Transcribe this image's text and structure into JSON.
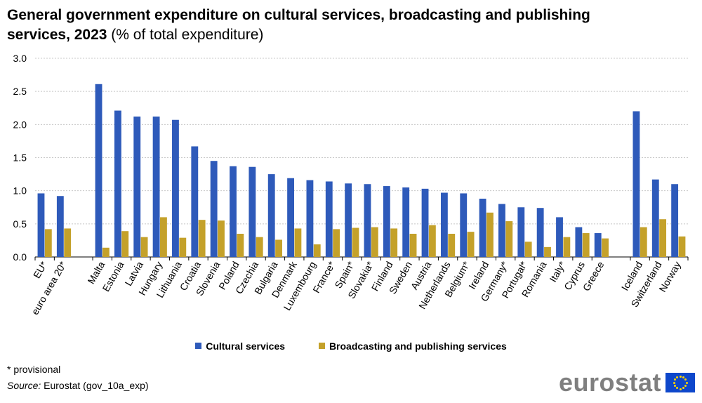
{
  "title_bold": "General government expenditure on cultural services, broadcasting and publishing services, 2023",
  "title_unit": " (% of total expenditure)",
  "note": "* provisional",
  "source_label": "Source:",
  "source_text": " Eurostat (gov_10a_exp)",
  "logo": "eurostat",
  "chart_data": {
    "type": "bar",
    "ylim": [
      0,
      3.0
    ],
    "yticks": [
      "0.0",
      "0.5",
      "1.0",
      "1.5",
      "2.0",
      "2.5",
      "3.0"
    ],
    "grid": true,
    "legend_placement": "bottom",
    "groups": [
      [
        "EU*",
        "euro area 20*"
      ],
      [
        "Malta",
        "Estonia",
        "Latvia",
        "Hungary",
        "Lithuania",
        "Croatia",
        "Slovenia",
        "Poland",
        "Czechia",
        "Bulgaria",
        "Denmark",
        "Luxembourg",
        "France*",
        "Spain*",
        "Slovakia*",
        "Finland",
        "Sweden",
        "Austria",
        "Netherlands",
        "Belgium*",
        "Ireland",
        "Germany*",
        "Portugal*",
        "Romania",
        "Italy*",
        "Cyprus",
        "Greece"
      ],
      [
        "Iceland",
        "Switzerland",
        "Norway"
      ]
    ],
    "categories": [
      "EU*",
      "euro area 20*",
      "Malta",
      "Estonia",
      "Latvia",
      "Hungary",
      "Lithuania",
      "Croatia",
      "Slovenia",
      "Poland",
      "Czechia",
      "Bulgaria",
      "Denmark",
      "Luxembourg",
      "France*",
      "Spain*",
      "Slovakia*",
      "Finland",
      "Sweden",
      "Austria",
      "Netherlands",
      "Belgium*",
      "Ireland",
      "Germany*",
      "Portugal*",
      "Romania",
      "Italy*",
      "Cyprus",
      "Greece",
      "Iceland",
      "Switzerland",
      "Norway"
    ],
    "series": [
      {
        "name": "Cultural services",
        "color": "#2e5aba",
        "values": [
          0.96,
          0.92,
          2.61,
          2.21,
          2.12,
          2.12,
          2.07,
          1.67,
          1.45,
          1.37,
          1.36,
          1.25,
          1.19,
          1.16,
          1.14,
          1.11,
          1.1,
          1.07,
          1.05,
          1.03,
          0.97,
          0.96,
          0.88,
          0.8,
          0.75,
          0.74,
          0.6,
          0.45,
          0.36,
          2.2,
          1.17,
          1.1
        ]
      },
      {
        "name": "Broadcasting and publishing services",
        "color": "#c4a12a",
        "values": [
          0.42,
          0.43,
          0.14,
          0.39,
          0.3,
          0.6,
          0.29,
          0.56,
          0.55,
          0.35,
          0.3,
          0.26,
          0.43,
          0.19,
          0.42,
          0.44,
          0.45,
          0.43,
          0.35,
          0.48,
          0.35,
          0.38,
          0.67,
          0.54,
          0.23,
          0.15,
          0.3,
          0.36,
          0.28,
          0.45,
          0.57,
          0.31
        ]
      }
    ]
  }
}
